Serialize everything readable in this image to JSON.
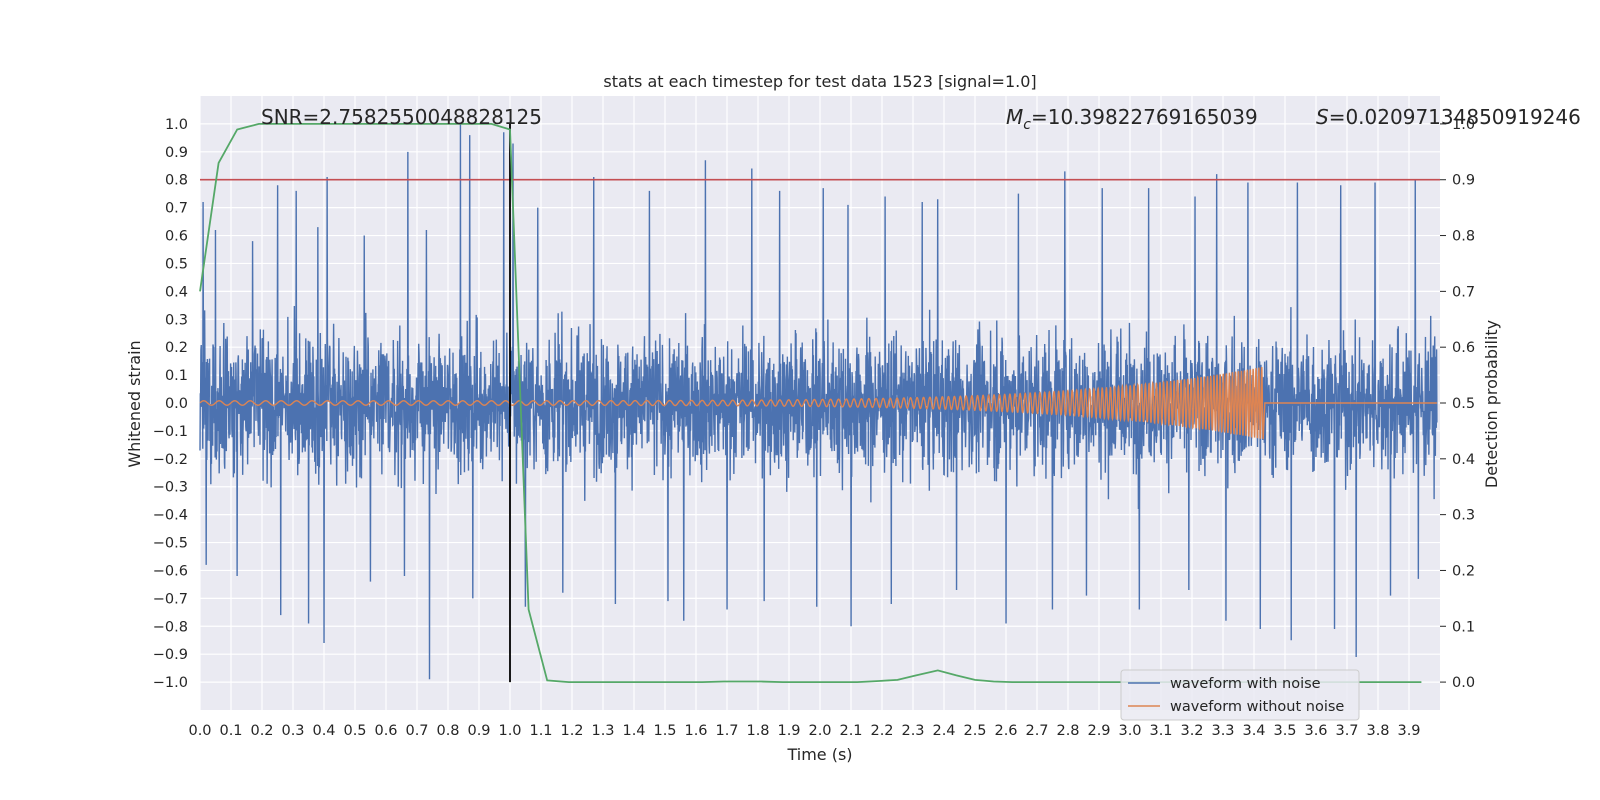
{
  "chart_data": {
    "type": "line",
    "title": "stats at each timestep for test data 1523 [signal=1.0]",
    "xlabel": "Time (s)",
    "ylabel": "Whitened strain",
    "y2label": "Detection probability",
    "xlim": [
      0.0,
      4.0
    ],
    "ylim": [
      -1.1,
      1.1
    ],
    "y2lim": [
      -0.05,
      1.05
    ],
    "x_ticks": [
      0.0,
      0.1,
      0.2,
      0.3,
      0.4,
      0.5,
      0.6,
      0.7,
      0.8,
      0.9,
      1.0,
      1.1,
      1.2,
      1.3,
      1.4,
      1.5,
      1.6,
      1.7,
      1.8,
      1.9,
      2.0,
      2.1,
      2.2,
      2.3,
      2.4,
      2.5,
      2.6,
      2.7,
      2.8,
      2.9,
      3.0,
      3.1,
      3.2,
      3.3,
      3.4,
      3.5,
      3.6,
      3.7,
      3.8,
      3.9
    ],
    "y_ticks": [
      1.0,
      0.9,
      0.8,
      0.7,
      0.6,
      0.5,
      0.4,
      0.3,
      0.2,
      0.1,
      0.0,
      -0.1,
      -0.2,
      -0.3,
      -0.4,
      -0.5,
      -0.6,
      -0.7,
      -0.8,
      -0.9,
      -1.0
    ],
    "y2_ticks": [
      1.0,
      0.9,
      0.8,
      0.7,
      0.6,
      0.5,
      0.4,
      0.3,
      0.2,
      0.1,
      0.0
    ],
    "grid": true,
    "legend_position": "bottom-right",
    "annotations": {
      "snr": "SNR=2.7582550048828125",
      "mc_symbol": "M",
      "mc_sub": "c",
      "mc_value": "=10.39822769165039",
      "s_symbol": "S",
      "s_value": "=0.02097134850919246"
    },
    "threshold_probability": 0.9,
    "vertical_marker_time": 1.0,
    "series": [
      {
        "name": "waveform with noise",
        "color": "#4c72b0",
        "axis": "left",
        "peaks_x": [
          0.01,
          0.05,
          0.17,
          0.25,
          0.31,
          0.38,
          0.41,
          0.53,
          0.67,
          0.73,
          0.84,
          0.87,
          0.98,
          1.01,
          1.09,
          1.27,
          1.45,
          1.63,
          1.78,
          1.87,
          2.01,
          2.09,
          2.21,
          2.33,
          2.38,
          2.44,
          2.64,
          2.79,
          2.91,
          3.06,
          3.21,
          3.28,
          3.38,
          3.54,
          3.68,
          3.79,
          3.84,
          3.92
        ],
        "peaks_y": [
          0.72,
          0.62,
          0.58,
          0.78,
          0.76,
          0.63,
          0.81,
          0.6,
          0.9,
          0.62,
          1.0,
          0.96,
          0.97,
          0.93,
          0.7,
          0.81,
          0.76,
          0.87,
          0.84,
          0.76,
          0.77,
          0.71,
          0.74,
          0.72,
          0.73,
          0.86,
          0.75,
          0.83,
          0.77,
          0.77,
          0.74,
          0.82,
          0.79,
          0.79,
          0.78,
          0.79,
          0.87,
          0.8
        ],
        "troughs_x": [
          0.02,
          0.12,
          0.26,
          0.35,
          0.4,
          0.55,
          0.66,
          0.74,
          0.88,
          1.05,
          1.17,
          1.34,
          1.51,
          1.56,
          1.7,
          1.82,
          1.99,
          2.1,
          2.23,
          2.44,
          2.6,
          2.75,
          2.86,
          3.03,
          3.19,
          3.31,
          3.42,
          3.52,
          3.66,
          3.73,
          3.84,
          3.93
        ],
        "troughs_y": [
          -0.58,
          -0.62,
          -0.76,
          -0.79,
          -0.86,
          -0.64,
          -0.62,
          -0.99,
          -0.7,
          -0.73,
          -0.68,
          -0.72,
          -0.71,
          -0.78,
          -0.74,
          -0.71,
          -0.73,
          -0.8,
          -0.72,
          -0.67,
          -0.79,
          -0.74,
          -0.69,
          -0.74,
          -0.67,
          -0.78,
          -0.81,
          -0.85,
          -0.81,
          -0.91,
          -0.69,
          -0.63
        ],
        "envelope": 0.4,
        "x_end": 3.99
      },
      {
        "name": "waveform without noise",
        "color": "#dd8452",
        "axis": "left",
        "x_end": 3.43,
        "amplitude_start": 0.008,
        "amplitude_peak": 0.13,
        "f_start": 20,
        "f_peak": 110
      },
      {
        "name": "",
        "color": "#55a868",
        "axis": "right",
        "x": [
          0.0,
          0.06,
          0.12,
          0.19,
          0.25,
          0.31,
          0.38,
          0.44,
          0.5,
          0.56,
          0.62,
          0.69,
          0.75,
          0.81,
          0.88,
          0.94,
          1.0,
          1.06,
          1.12,
          1.19,
          1.25,
          1.31,
          1.38,
          1.44,
          1.5,
          1.56,
          1.62,
          1.69,
          1.75,
          1.81,
          1.88,
          1.94,
          2.0,
          2.06,
          2.12,
          2.19,
          2.25,
          2.31,
          2.38,
          2.44,
          2.5,
          2.56,
          2.62,
          2.69,
          2.75,
          2.81,
          2.88,
          2.94,
          3.0,
          3.06,
          3.12,
          3.19,
          3.25,
          3.31,
          3.38,
          3.44,
          3.5,
          3.56,
          3.62,
          3.69,
          3.75,
          3.81,
          3.88,
          3.94
        ],
        "y": [
          0.7,
          0.93,
          0.99,
          1.0,
          1.0,
          1.0,
          1.0,
          1.0,
          1.0,
          1.0,
          1.0,
          1.0,
          1.0,
          1.0,
          1.0,
          1.0,
          0.99,
          0.13,
          0.003,
          0.0,
          0.0,
          0.0,
          0.0,
          0.0,
          0.0,
          0.0,
          0.0,
          0.001,
          0.001,
          0.001,
          0.0,
          0.0,
          0.0,
          0.0,
          0.0,
          0.002,
          0.004,
          0.012,
          0.021,
          0.012,
          0.004,
          0.001,
          0.0,
          0.0,
          0.0,
          0.0,
          0.0,
          0.0,
          0.0,
          0.0,
          0.0,
          0.0,
          0.0,
          0.0,
          0.0,
          0.0,
          0.0,
          0.0,
          0.0,
          0.0,
          0.0,
          0.0,
          0.0,
          0.0
        ]
      }
    ]
  }
}
